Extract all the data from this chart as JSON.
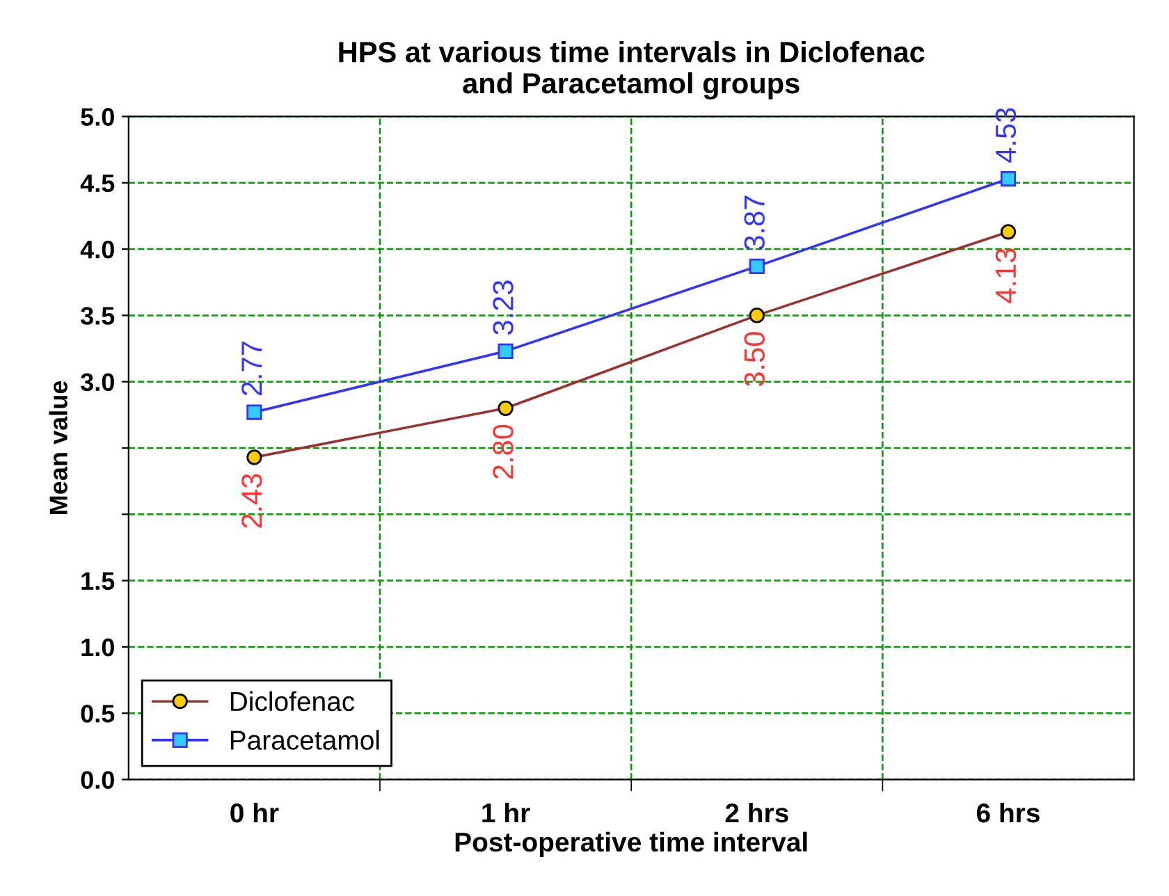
{
  "chart_data": {
    "type": "line",
    "title": "HPS at various time intervals in Diclofenac\nand Paracetamol groups",
    "xlabel": "Post-operative time interval",
    "ylabel": "Mean value",
    "categories": [
      "0 hr",
      "1 hr",
      "2 hrs",
      "6 hrs"
    ],
    "series": [
      {
        "name": "Diclofenac",
        "color": "#993333",
        "marker": "circle",
        "values": [
          2.43,
          2.8,
          3.5,
          4.13
        ],
        "value_labels": [
          "2.43",
          "2.80",
          "3.50",
          "4.13"
        ]
      },
      {
        "name": "Paracetamol",
        "color": "#3333ff",
        "marker": "square",
        "values": [
          2.77,
          3.23,
          3.87,
          4.53
        ],
        "value_labels": [
          "2.77",
          "3.23",
          "3.87",
          "4.53"
        ]
      }
    ],
    "ylim": [
      0,
      5
    ],
    "yticks": [
      {
        "value": 0,
        "label": "0.0"
      },
      {
        "value": 0.5,
        "label": "0.5"
      },
      {
        "value": 1,
        "label": "1.0"
      },
      {
        "value": 1.5,
        "label": "1.5"
      },
      {
        "value": 2,
        "label": null
      },
      {
        "value": 2.5,
        "label": null
      },
      {
        "value": 3,
        "label": "3.0"
      },
      {
        "value": 3.5,
        "label": "3.5"
      },
      {
        "value": 4,
        "label": "4.0"
      },
      {
        "value": 4.5,
        "label": "4.5"
      },
      {
        "value": 5,
        "label": "5.0"
      }
    ],
    "grid": true,
    "legend": "bottom left",
    "line_style": "solid"
  }
}
